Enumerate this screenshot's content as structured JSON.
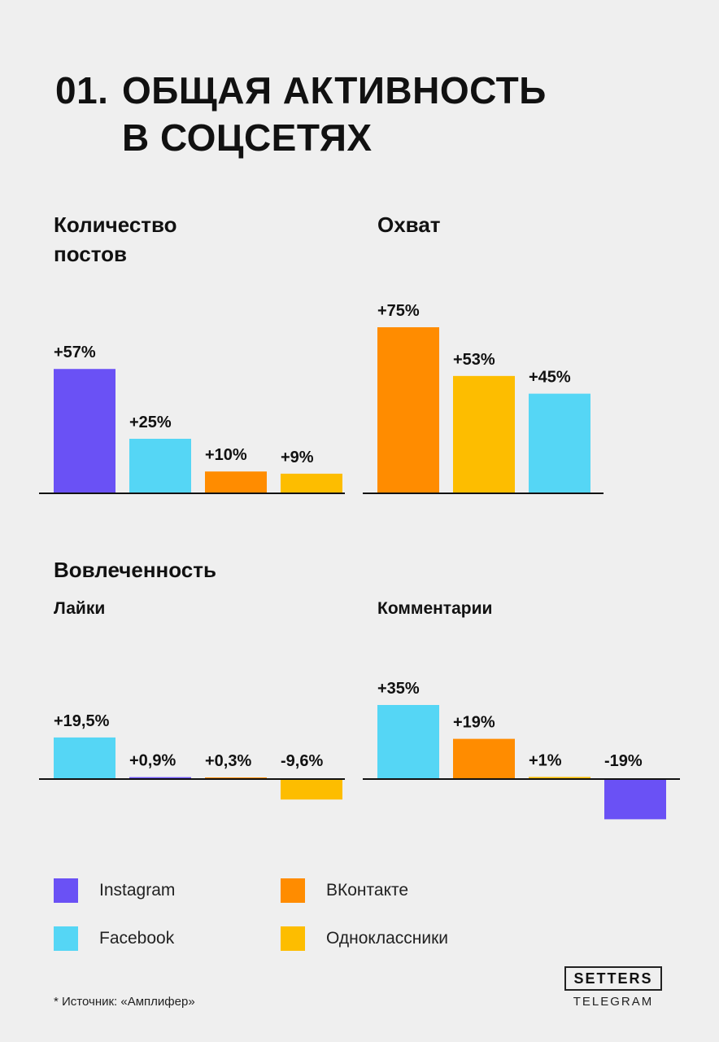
{
  "title": {
    "number": "01.",
    "line1": "ОБЩАЯ АКТИВНОСТЬ",
    "line2": "В СОЦСЕТЯХ"
  },
  "section_engagement": "Вовлеченность",
  "colors": {
    "Instagram": "#6a51f5",
    "Facebook": "#55d6f5",
    "ВКонтакте": "#ff8c00",
    "Одноклассники": "#fdbd00"
  },
  "chart_data": [
    {
      "type": "bar",
      "title": "Количество постов",
      "categories": [
        "Instagram",
        "Facebook",
        "ВКонтакте",
        "Одноклассники"
      ],
      "values": [
        57,
        25,
        10,
        9
      ],
      "labels": [
        "+57%",
        "+25%",
        "+10%",
        "+9%"
      ]
    },
    {
      "type": "bar",
      "title": "Охват",
      "categories": [
        "ВКонтакте",
        "Одноклассники",
        "Facebook"
      ],
      "values": [
        75,
        53,
        45
      ],
      "labels": [
        "+75%",
        "+53%",
        "+45%"
      ]
    },
    {
      "type": "bar",
      "title": "Лайки",
      "categories": [
        "Facebook",
        "Instagram",
        "ВКонтакте",
        "Одноклассники"
      ],
      "values": [
        19.5,
        0.9,
        0.3,
        -9.6
      ],
      "labels": [
        "+19,5%",
        "+0,9%",
        "+0,3%",
        "-9,6%"
      ]
    },
    {
      "type": "bar",
      "title": "Комментарии",
      "categories": [
        "Facebook",
        "ВКонтакте",
        "Одноклассники",
        "Instagram"
      ],
      "values": [
        35,
        19,
        1,
        -19
      ],
      "labels": [
        "+35%",
        "+19%",
        "+1%",
        "-19%"
      ]
    }
  ],
  "legend": [
    {
      "label": "Instagram",
      "color": "#6a51f5"
    },
    {
      "label": "ВКонтакте",
      "color": "#ff8c00"
    },
    {
      "label": "Facebook",
      "color": "#55d6f5"
    },
    {
      "label": "Одноклассники",
      "color": "#fdbd00"
    }
  ],
  "source": "* Источник: «Амплифер»",
  "logo": {
    "name": "SETTERS",
    "sub": "TELEGRAM"
  }
}
